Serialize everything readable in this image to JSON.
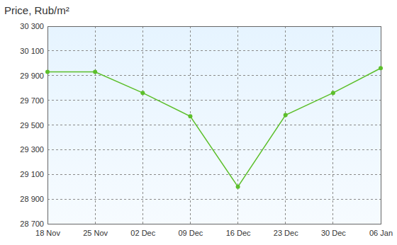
{
  "chart_data": {
    "type": "line",
    "title": "Price, Rub/m²",
    "categories": [
      "18 Nov",
      "25 Nov",
      "02 Dec",
      "09 Dec",
      "16 Dec",
      "23 Dec",
      "30 Dec",
      "06 Jan"
    ],
    "values": [
      29930,
      29930,
      29760,
      29570,
      29000,
      29580,
      29760,
      29960
    ],
    "color": "#5cbf2a",
    "marker": "circle",
    "grid": true,
    "ylim": [
      28700,
      30300
    ],
    "yticks": [
      {
        "value": 28700,
        "label": "28 700"
      },
      {
        "value": 28900,
        "label": "28 900"
      },
      {
        "value": 29100,
        "label": "29 100"
      },
      {
        "value": 29300,
        "label": "29 300"
      },
      {
        "value": 29500,
        "label": "29 500"
      },
      {
        "value": 29700,
        "label": "29 700"
      },
      {
        "value": 29900,
        "label": "29 900"
      },
      {
        "value": 30100,
        "label": "30 100"
      },
      {
        "value": 30300,
        "label": "30 300"
      }
    ]
  }
}
